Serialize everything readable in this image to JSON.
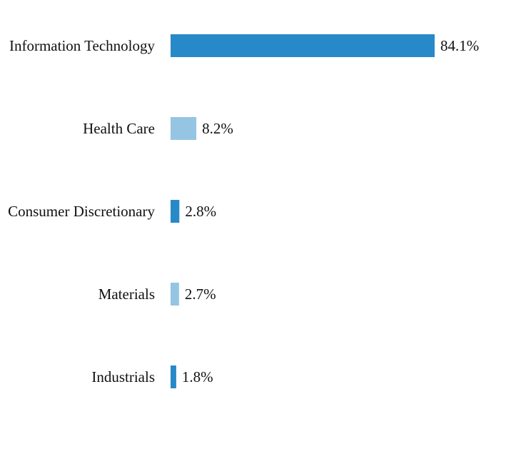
{
  "chart_data": {
    "type": "bar",
    "orientation": "horizontal",
    "categories": [
      "Information Technology",
      "Health Care",
      "Consumer Discretionary",
      "Materials",
      "Industrials"
    ],
    "values": [
      84.1,
      8.2,
      2.8,
      2.7,
      1.8
    ],
    "value_labels": [
      "84.1%",
      "8.2%",
      "2.8%",
      "2.7%",
      "1.8%"
    ],
    "unit": "%",
    "title": "",
    "xlabel": "",
    "ylabel": "",
    "xlim": [
      0,
      100
    ],
    "grid": false,
    "legend": "none",
    "colors": [
      "#2889c8",
      "#95c5e3",
      "#2889c8",
      "#95c5e3",
      "#2889c8"
    ]
  }
}
